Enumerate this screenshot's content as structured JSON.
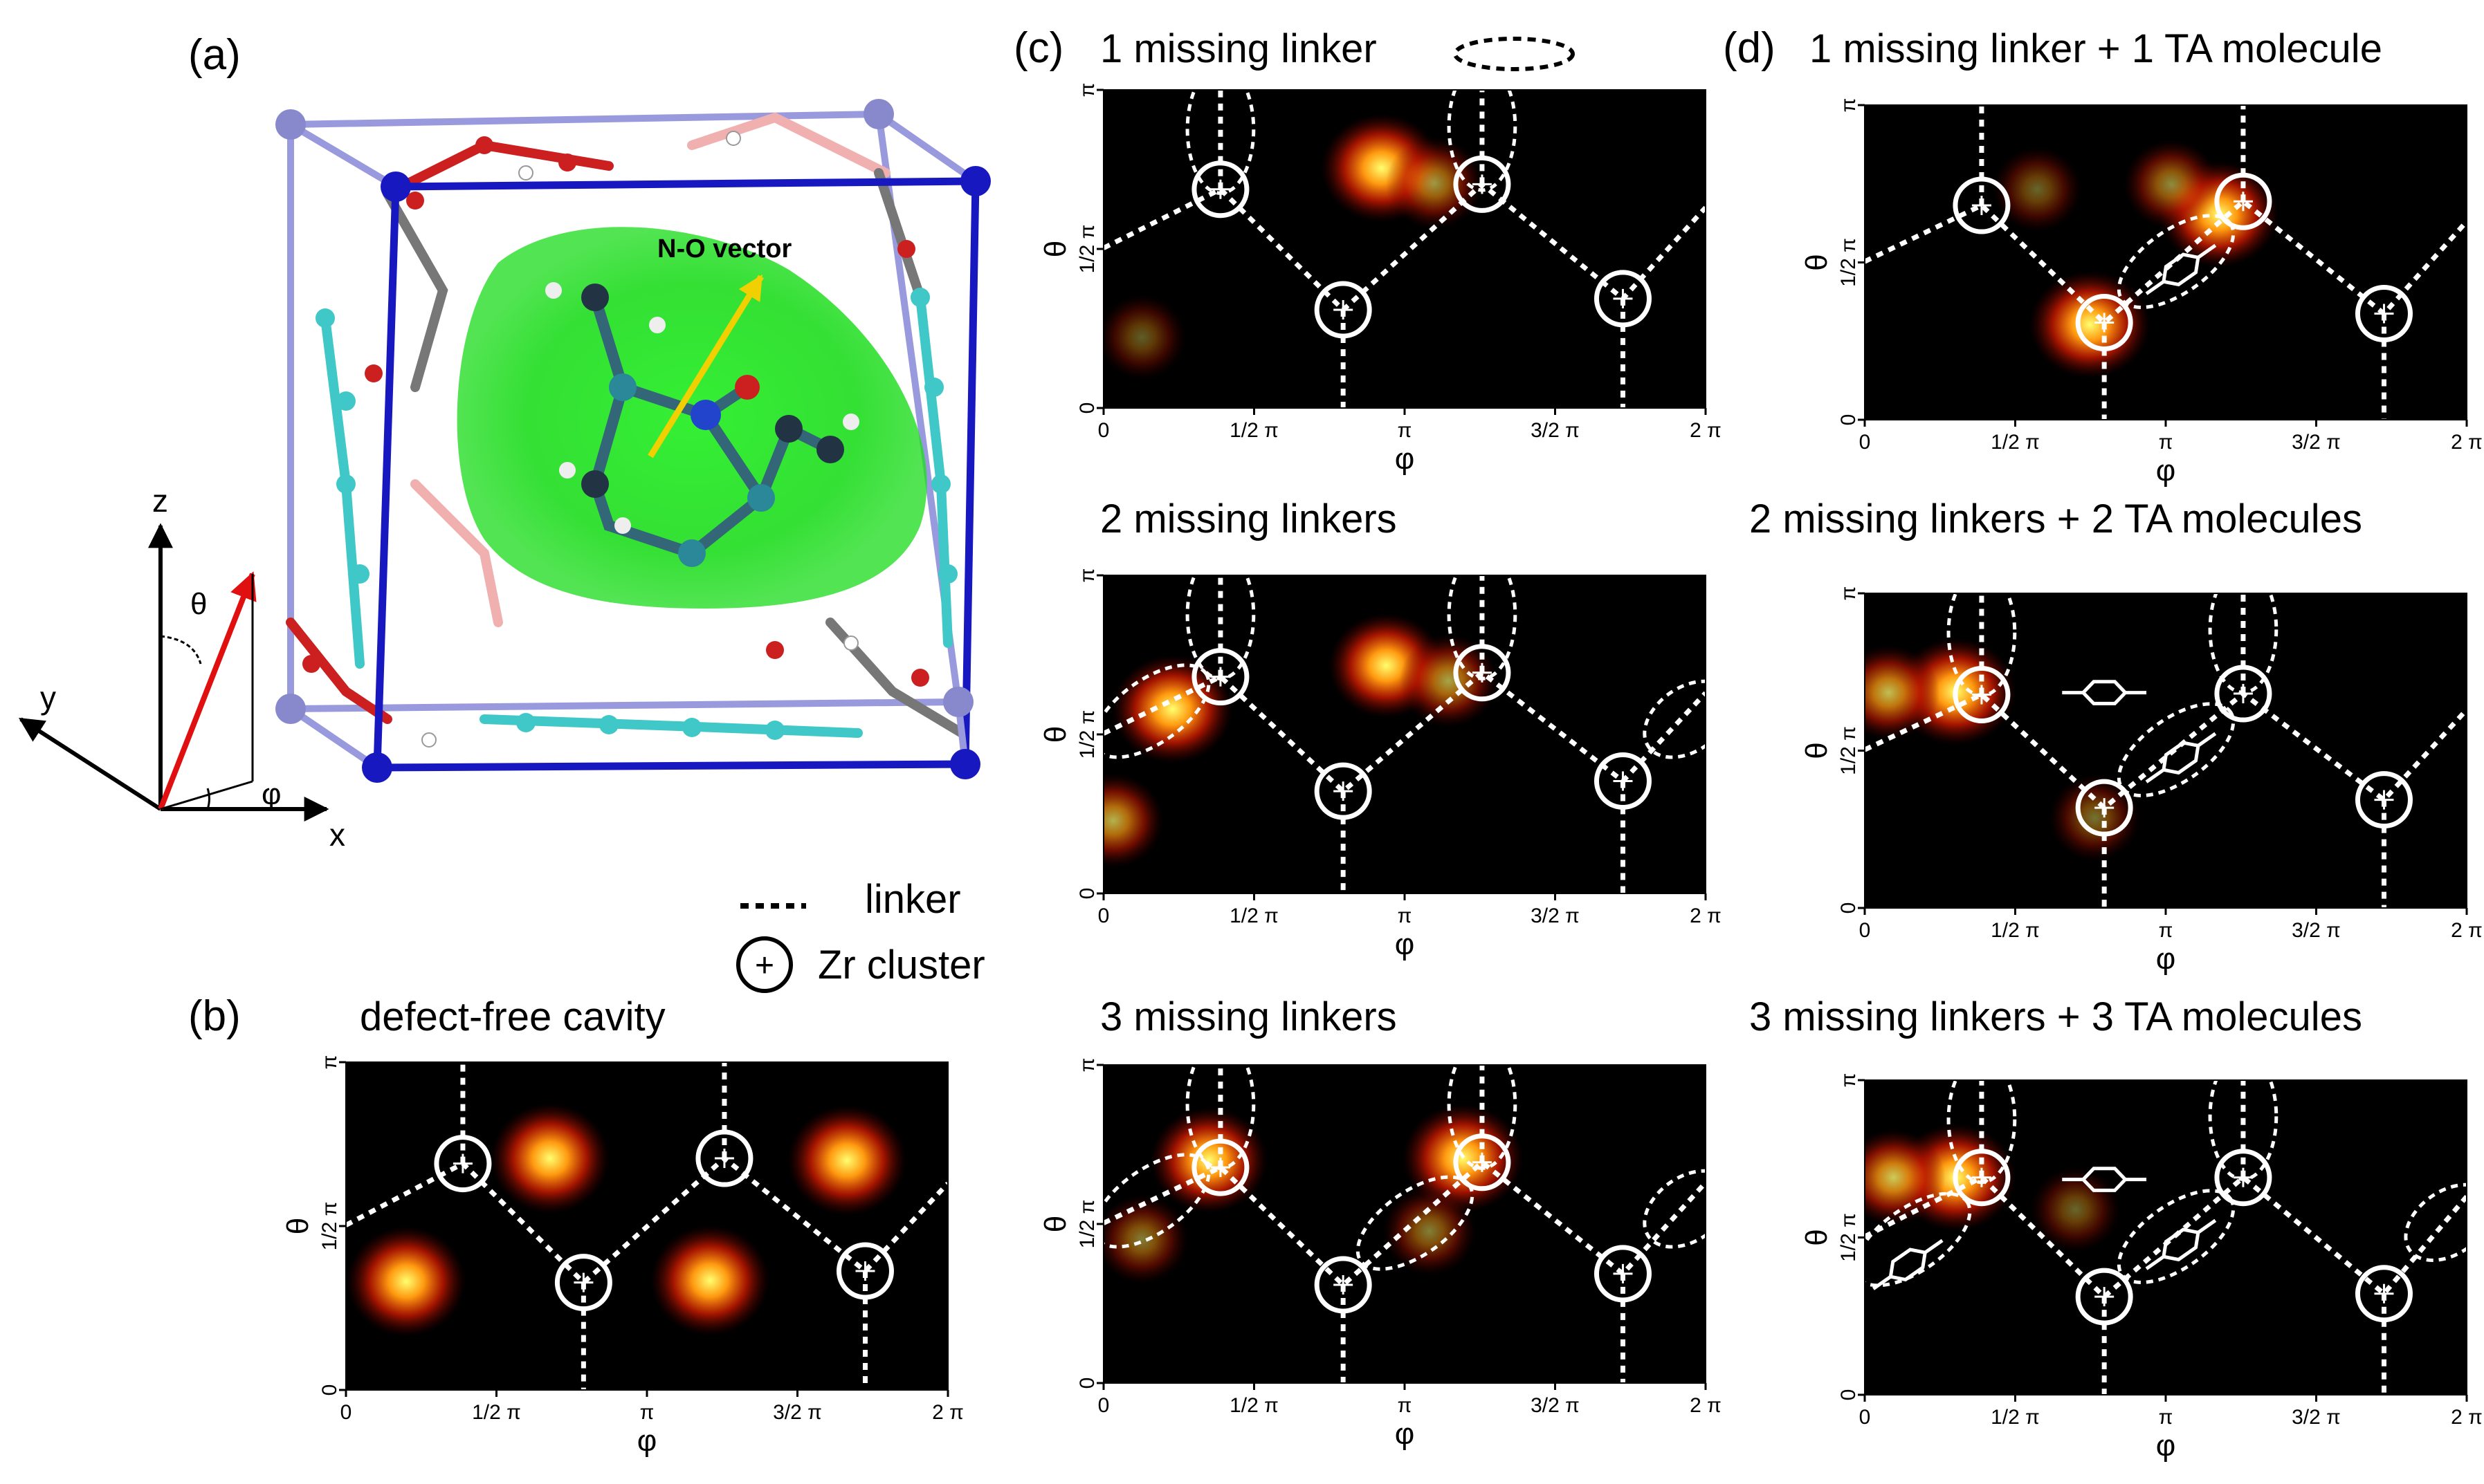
{
  "panel_labels": {
    "a": "(a)",
    "b": "(b)",
    "c": "(c)",
    "d": "(d)"
  },
  "panel_a": {
    "vector_label": "N-O vector",
    "axis_x": "x",
    "axis_y": "y",
    "axis_z": "z",
    "theta": "θ",
    "phi": "φ"
  },
  "legend": {
    "linker": "linker",
    "zr_cluster": "Zr cluster",
    "missing_linker": "missing linker",
    "plus": "+"
  },
  "axes": {
    "x_label": "φ",
    "y_label": "θ",
    "x_ticks": [
      "0",
      "1/2 π",
      "π",
      "3/2 π",
      "2 π"
    ],
    "y_ticks": [
      "0",
      "1/2 π",
      "π"
    ]
  },
  "colors": {
    "heat_low": "#000000",
    "heat_mid": "#c01800",
    "heat_high": "#ffff70",
    "overlay": "#ffffff",
    "cavity": "#22dd22",
    "cell_edge": "#1818c0",
    "vector": "#f0d000",
    "theta_arrow": "#e01010"
  },
  "chart_data": [
    {
      "id": "b",
      "type": "heatmap",
      "title": "defect-free cavity",
      "xlabel": "φ",
      "ylabel": "θ",
      "xlim": [
        0,
        6.283
      ],
      "ylim": [
        0,
        3.1416
      ],
      "missing_linkers": 0,
      "ta_molecules": 0,
      "zr_clusters": [
        {
          "phi": 1.22,
          "theta": 2.17
        },
        {
          "phi": 2.48,
          "theta": 1.03
        },
        {
          "phi": 3.95,
          "theta": 2.22
        },
        {
          "phi": 5.42,
          "theta": 1.14
        }
      ],
      "hotspots": [
        {
          "phi": 2.13,
          "theta": 2.22,
          "intensity": 0.95
        },
        {
          "phi": 5.23,
          "theta": 2.2,
          "intensity": 0.95
        },
        {
          "phi": 0.63,
          "theta": 1.04,
          "intensity": 0.95
        },
        {
          "phi": 3.8,
          "theta": 1.05,
          "intensity": 0.95
        }
      ]
    },
    {
      "id": "c1",
      "type": "heatmap",
      "title": "1 missing linker",
      "xlabel": "φ",
      "ylabel": "θ",
      "xlim": [
        0,
        6.283
      ],
      "ylim": [
        0,
        3.1416
      ],
      "missing_linkers": 1,
      "ta_molecules": 0,
      "zr_clusters": [
        {
          "phi": 1.22,
          "theta": 2.16
        },
        {
          "phi": 2.5,
          "theta": 0.97
        },
        {
          "phi": 3.95,
          "theta": 2.21
        },
        {
          "phi": 5.42,
          "theta": 1.08
        }
      ],
      "hotspots": [
        {
          "phi": 2.9,
          "theta": 2.37,
          "intensity": 1.0
        },
        {
          "phi": 3.45,
          "theta": 2.22,
          "intensity": 0.35
        },
        {
          "phi": 0.4,
          "theta": 0.7,
          "intensity": 0.12
        }
      ]
    },
    {
      "id": "c2",
      "type": "heatmap",
      "title": "2 missing linkers",
      "xlabel": "φ",
      "ylabel": "θ",
      "xlim": [
        0,
        6.283
      ],
      "ylim": [
        0,
        3.1416
      ],
      "missing_linkers": 2,
      "ta_molecules": 0,
      "zr_clusters": [
        {
          "phi": 1.22,
          "theta": 2.14
        },
        {
          "phi": 2.5,
          "theta": 1.01
        },
        {
          "phi": 3.95,
          "theta": 2.18
        },
        {
          "phi": 5.42,
          "theta": 1.11
        }
      ],
      "hotspots": [
        {
          "phi": 0.72,
          "theta": 1.82,
          "intensity": 1.0
        },
        {
          "phi": 2.95,
          "theta": 2.25,
          "intensity": 0.85
        },
        {
          "phi": 0.1,
          "theta": 0.72,
          "intensity": 0.45
        },
        {
          "phi": 3.6,
          "theta": 2.1,
          "intensity": 0.4
        }
      ]
    },
    {
      "id": "c3",
      "type": "heatmap",
      "title": "3 missing linkers",
      "xlabel": "φ",
      "ylabel": "θ",
      "xlim": [
        0,
        6.283
      ],
      "ylim": [
        0,
        3.1416
      ],
      "missing_linkers": 3,
      "ta_molecules": 0,
      "zr_clusters": [
        {
          "phi": 1.22,
          "theta": 2.13
        },
        {
          "phi": 2.5,
          "theta": 0.97
        },
        {
          "phi": 3.95,
          "theta": 2.18
        },
        {
          "phi": 5.42,
          "theta": 1.08
        }
      ],
      "hotspots": [
        {
          "phi": 1.1,
          "theta": 2.2,
          "intensity": 0.9
        },
        {
          "phi": 3.75,
          "theta": 2.22,
          "intensity": 1.0
        },
        {
          "phi": 0.4,
          "theta": 1.42,
          "intensity": 0.25
        },
        {
          "phi": 3.4,
          "theta": 1.5,
          "intensity": 0.25
        }
      ]
    },
    {
      "id": "d1",
      "type": "heatmap",
      "title": "1 missing linker + 1 TA molecule",
      "xlabel": "φ",
      "ylabel": "θ",
      "xlim": [
        0,
        6.283
      ],
      "ylim": [
        0,
        3.1416
      ],
      "missing_linkers": 1,
      "ta_molecules": 1,
      "zr_clusters": [
        {
          "phi": 1.22,
          "theta": 2.14
        },
        {
          "phi": 2.5,
          "theta": 0.97
        },
        {
          "phi": 3.95,
          "theta": 2.18
        },
        {
          "phi": 5.42,
          "theta": 1.06
        }
      ],
      "hotspots": [
        {
          "phi": 2.35,
          "theta": 0.95,
          "intensity": 1.0
        },
        {
          "phi": 3.7,
          "theta": 2.05,
          "intensity": 0.95
        },
        {
          "phi": 3.2,
          "theta": 2.35,
          "intensity": 0.3
        },
        {
          "phi": 1.8,
          "theta": 2.3,
          "intensity": 0.15
        }
      ]
    },
    {
      "id": "d2",
      "type": "heatmap",
      "title": "2 missing linkers + 2 TA molecules",
      "xlabel": "φ",
      "ylabel": "θ",
      "xlim": [
        0,
        6.283
      ],
      "ylim": [
        0,
        3.1416
      ],
      "missing_linkers": 2,
      "ta_molecules": 2,
      "zr_clusters": [
        {
          "phi": 1.22,
          "theta": 2.13
        },
        {
          "phi": 2.5,
          "theta": 1.0
        },
        {
          "phi": 3.95,
          "theta": 2.14
        },
        {
          "phi": 5.42,
          "theta": 1.08
        }
      ],
      "hotspots": [
        {
          "phi": 0.95,
          "theta": 2.16,
          "intensity": 1.0
        },
        {
          "phi": 0.25,
          "theta": 2.15,
          "intensity": 0.5
        },
        {
          "phi": 2.4,
          "theta": 0.9,
          "intensity": 0.2
        }
      ]
    },
    {
      "id": "d3",
      "type": "heatmap",
      "title": "3 missing linkers + 3 TA molecules",
      "xlabel": "φ",
      "ylabel": "θ",
      "xlim": [
        0,
        6.283
      ],
      "ylim": [
        0,
        3.1416
      ],
      "missing_linkers": 3,
      "ta_molecules": 3,
      "zr_clusters": [
        {
          "phi": 1.22,
          "theta": 2.17
        },
        {
          "phi": 2.5,
          "theta": 0.98
        },
        {
          "phi": 3.95,
          "theta": 2.17
        },
        {
          "phi": 5.42,
          "theta": 1.01
        }
      ],
      "hotspots": [
        {
          "phi": 0.95,
          "theta": 2.17,
          "intensity": 1.0
        },
        {
          "phi": 0.3,
          "theta": 2.17,
          "intensity": 0.55
        },
        {
          "phi": 2.2,
          "theta": 1.85,
          "intensity": 0.15
        }
      ]
    }
  ]
}
